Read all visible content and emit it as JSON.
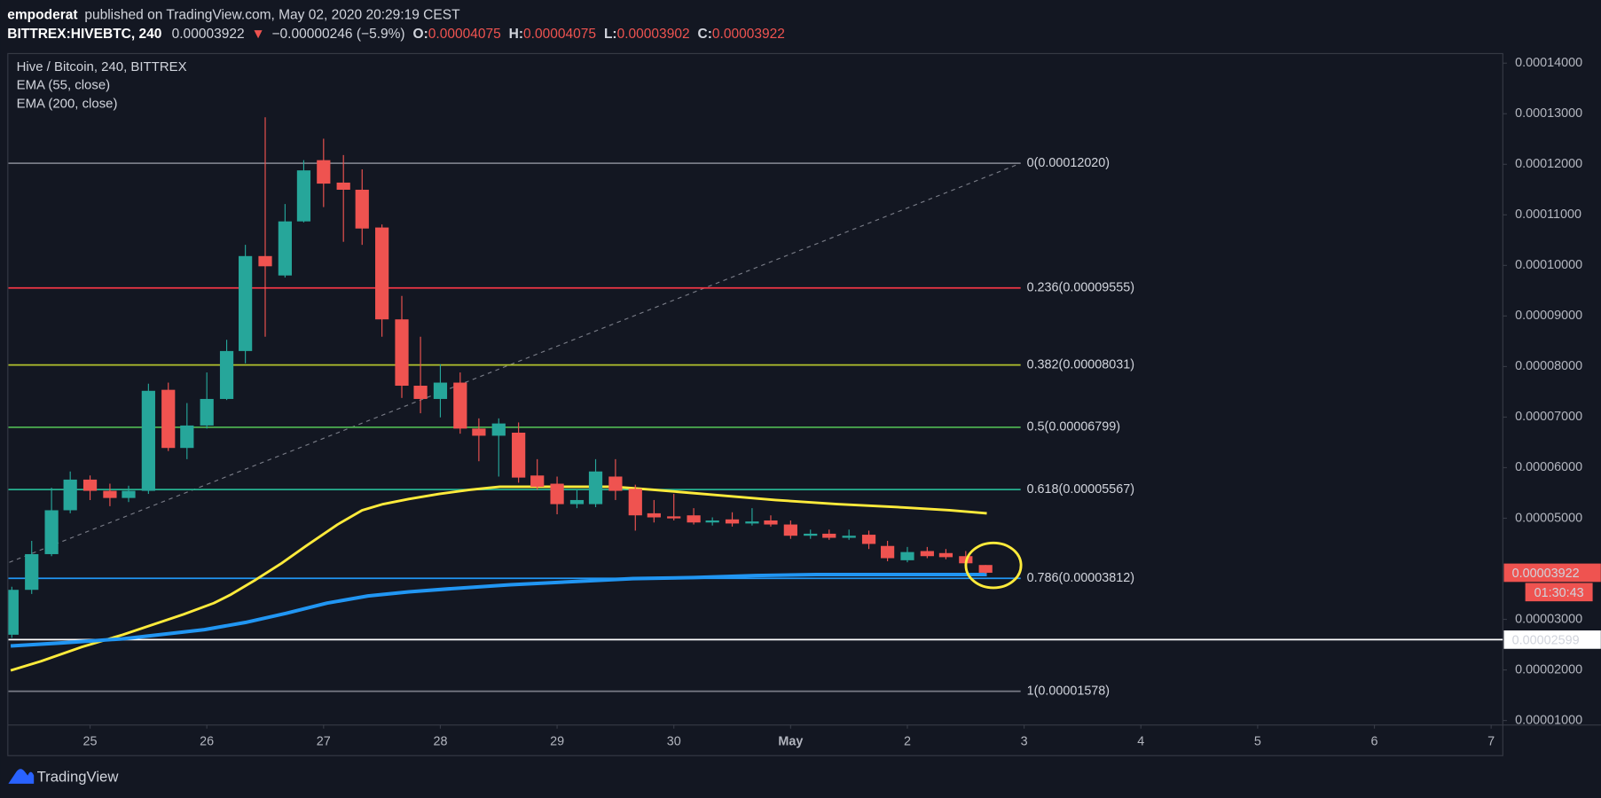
{
  "header": {
    "author": "empoderat",
    "published": "published on TradingView.com, May 02, 2020 20:29:19 CEST",
    "symbol": "BITTREX:HIVEBTC, 240",
    "last": "0.00003922",
    "arrow": "▼",
    "change": "−0.00000246 (−5.9%)",
    "ohlc": [
      {
        "key": "O:",
        "value": "0.00004075"
      },
      {
        "key": "H:",
        "value": "0.00004075"
      },
      {
        "key": "L:",
        "value": "0.00003902"
      },
      {
        "key": "C:",
        "value": "0.00003922"
      }
    ]
  },
  "footer": {
    "brand": "TradingView"
  },
  "chart_data": {
    "type": "candlestick",
    "title": "Hive / Bitcoin, 240, BITTREX",
    "up_color": "#26a69a",
    "down_color": "#ef5350",
    "x": [
      24.33,
      24.5,
      24.67,
      24.83,
      25,
      25.17,
      25.33,
      25.5,
      25.67,
      25.83,
      26,
      26.17,
      26.33,
      26.5,
      26.67,
      26.83,
      27,
      27.17,
      27.33,
      27.5,
      27.67,
      27.83,
      28,
      28.17,
      28.33,
      28.5,
      28.67,
      28.83,
      29,
      29.17,
      29.33,
      29.5,
      29.67,
      29.83,
      30,
      30.17,
      30.33,
      30.5,
      30.67,
      30.83,
      31,
      31.17,
      31.33,
      31.5,
      31.67,
      31.83,
      32,
      32.17,
      32.33,
      32.5,
      32.67
    ],
    "open": [
      2.696e-05,
      3.584e-05,
      4.29e-05,
      5.158e-05,
      5.764e-05,
      5.542e-05,
      5.401e-05,
      5.542e-05,
      7.54e-05,
      6.39e-05,
      6.834e-05,
      7.359e-05,
      8.307e-05,
      0.00010185,
      9.801e-05,
      0.00010871,
      0.00012082,
      0.00011638,
      0.00011497,
      0.0001075,
      8.933e-05,
      7.621e-05,
      7.359e-05,
      7.682e-05,
      6.773e-05,
      6.632e-05,
      6.692e-05,
      5.845e-05,
      5.683e-05,
      5.279e-05,
      5.279e-05,
      5.824e-05,
      5.582e-05,
      5.098e-05,
      5.037e-05,
      5.057e-05,
      4.916e-05,
      4.977e-05,
      4.896e-05,
      4.956e-05,
      4.876e-05,
      4.654e-05,
      4.694e-05,
      4.613e-05,
      4.674e-05,
      4.452e-05,
      4.169e-05,
      4.351e-05,
      4.311e-05,
      4.25e-05,
      4.075e-05
    ],
    "high": [
      3.644e-05,
      4.553e-05,
      5.602e-05,
      5.925e-05,
      5.845e-05,
      5.683e-05,
      5.643e-05,
      7.661e-05,
      7.682e-05,
      7.278e-05,
      7.883e-05,
      8.529e-05,
      0.00010407,
      0.0001293,
      0.00011214,
      0.00012082,
      0.00012506,
      0.00012183,
      0.000119,
      0.0001081,
      9.397e-05,
      8.59e-05,
      8.045e-05,
      7.883e-05,
      6.975e-05,
      6.975e-05,
      6.894e-05,
      6.168e-05,
      5.824e-05,
      5.562e-05,
      6.168e-05,
      6.168e-05,
      5.663e-05,
      5.36e-05,
      5.481e-05,
      5.199e-05,
      5.017e-05,
      5.118e-05,
      5.199e-05,
      5.057e-05,
      4.956e-05,
      4.775e-05,
      4.775e-05,
      4.775e-05,
      4.755e-05,
      4.553e-05,
      4.432e-05,
      4.432e-05,
      4.391e-05,
      4.351e-05,
      4.075e-05
    ],
    "low": [
      2.635e-05,
      3.503e-05,
      4.25e-05,
      5.098e-05,
      5.36e-05,
      5.239e-05,
      5.32e-05,
      5.481e-05,
      6.329e-05,
      6.168e-05,
      6.773e-05,
      7.338e-05,
      8.065e-05,
      8.59e-05,
      9.761e-05,
      0.00010851,
      0.00011154,
      0.00010467,
      0.00010407,
      8.59e-05,
      7.379e-05,
      7.076e-05,
      6.995e-05,
      6.672e-05,
      6.127e-05,
      5.824e-05,
      5.703e-05,
      5.562e-05,
      5.078e-05,
      5.199e-05,
      5.219e-05,
      5.36e-05,
      4.755e-05,
      4.916e-05,
      4.956e-05,
      4.876e-05,
      4.856e-05,
      4.835e-05,
      4.856e-05,
      4.835e-05,
      4.593e-05,
      4.593e-05,
      4.573e-05,
      4.573e-05,
      4.391e-05,
      4.149e-05,
      4.129e-05,
      4.21e-05,
      4.189e-05,
      4.028e-05,
      3.902e-05
    ],
    "close": [
      3.584e-05,
      4.29e-05,
      5.158e-05,
      5.764e-05,
      5.542e-05,
      5.401e-05,
      5.542e-05,
      7.52e-05,
      6.39e-05,
      6.834e-05,
      7.359e-05,
      8.307e-05,
      0.00010185,
      9.983e-05,
      0.00010871,
      0.0001188,
      0.00011618,
      0.00011497,
      0.0001073,
      8.933e-05,
      7.621e-05,
      7.359e-05,
      7.682e-05,
      6.773e-05,
      6.632e-05,
      6.874e-05,
      5.804e-05,
      5.623e-05,
      5.279e-05,
      5.36e-05,
      5.925e-05,
      5.542e-05,
      5.057e-05,
      5.017e-05,
      4.997e-05,
      4.916e-05,
      4.956e-05,
      4.896e-05,
      4.936e-05,
      4.876e-05,
      4.654e-05,
      4.694e-05,
      4.613e-05,
      4.654e-05,
      4.492e-05,
      4.21e-05,
      4.331e-05,
      4.25e-05,
      4.23e-05,
      4.109e-05,
      3.922e-05
    ],
    "lines": [
      {
        "name": "EMA (55, close)",
        "color": "#ffeb3b",
        "x": [
          24.32,
          24.58,
          24.93,
          25.28,
          25.54,
          25.8,
          26.06,
          26.2,
          26.42,
          26.64,
          26.85,
          27.12,
          27.33,
          27.51,
          27.73,
          27.99,
          28.25,
          28.51,
          29.13,
          29.48,
          29.83,
          30.35,
          30.87,
          31.4,
          31.92,
          32.36,
          32.68
        ],
        "values": [
          1.989e-05,
          2.171e-05,
          2.453e-05,
          2.696e-05,
          2.897e-05,
          3.099e-05,
          3.321e-05,
          3.483e-05,
          3.786e-05,
          4.109e-05,
          4.452e-05,
          4.876e-05,
          5.158e-05,
          5.279e-05,
          5.38e-05,
          5.481e-05,
          5.562e-05,
          5.623e-05,
          5.623e-05,
          5.623e-05,
          5.562e-05,
          5.461e-05,
          5.36e-05,
          5.279e-05,
          5.219e-05,
          5.158e-05,
          5.098e-05
        ]
      },
      {
        "name": "EMA (200, close)",
        "color": "#2196f3",
        "x": [
          24.32,
          24.76,
          25.28,
          25.98,
          26.33,
          26.68,
          27.03,
          27.38,
          27.73,
          28.08,
          28.6,
          29.13,
          29.65,
          30.17,
          30.7,
          31.22,
          32.68
        ],
        "values": [
          2.474e-05,
          2.534e-05,
          2.615e-05,
          2.797e-05,
          2.938e-05,
          3.12e-05,
          3.321e-05,
          3.463e-05,
          3.543e-05,
          3.604e-05,
          3.685e-05,
          3.745e-05,
          3.806e-05,
          3.826e-05,
          3.866e-05,
          3.887e-05,
          3.887e-05
        ]
      }
    ],
    "fib": {
      "start": [
        21.51,
        1.578e-05
      ],
      "end": [
        32.97,
        0.0001202
      ],
      "levels": [
        {
          "value": 0.0001202,
          "label": "0(0.00012020)",
          "color": "#787b86"
        },
        {
          "value": 9.555e-05,
          "label": "0.236(0.00009555)",
          "color": "#f23645"
        },
        {
          "value": 8.031e-05,
          "label": "0.382(0.00008031)",
          "color": "#b2c22d"
        },
        {
          "value": 6.799e-05,
          "label": "0.5(0.00006799)",
          "color": "#4caf50"
        },
        {
          "value": 5.567e-05,
          "label": "0.618(0.00005567)",
          "color": "#26b08f"
        },
        {
          "value": 3.812e-05,
          "label": "0.786(0.00003812)",
          "color": "#2196f3"
        },
        {
          "value": 1.578e-05,
          "label": "1(0.00001578)",
          "color": "#787b86"
        }
      ]
    },
    "hline": {
      "value": 2.599e-05,
      "color": "#ffffff"
    },
    "countdown": "01:30:43",
    "xlim": [
      24.3,
      37.1
    ],
    "xticks": [
      25,
      26,
      27,
      28,
      29,
      30,
      {
        "value": 31,
        "label": "May"
      },
      {
        "value": 32,
        "label": "2"
      },
      {
        "value": 33,
        "label": "3"
      },
      {
        "value": 34,
        "label": "4"
      },
      {
        "value": 35,
        "label": "5"
      },
      {
        "value": 36,
        "label": "6"
      },
      {
        "value": 37,
        "label": "7"
      }
    ],
    "ylim": [
      9.2e-06,
      0.000142
    ],
    "yticks": [
      {
        "value": 0.00014,
        "label": "0.00014000"
      },
      {
        "value": 0.00013,
        "label": "0.00013000"
      },
      {
        "value": 0.00012,
        "label": "0.00012000"
      },
      {
        "value": 0.00011,
        "label": "0.00011000"
      },
      {
        "value": 0.0001,
        "label": "0.00010000"
      },
      {
        "value": 9e-05,
        "label": "0.00009000"
      },
      {
        "value": 8e-05,
        "label": "0.00008000"
      },
      {
        "value": 7e-05,
        "label": "0.00007000"
      },
      {
        "value": 6e-05,
        "label": "0.00006000"
      },
      {
        "value": 5e-05,
        "label": "0.00005000"
      },
      {
        "value": 3e-05,
        "label": "0.00003000"
      },
      {
        "value": 2e-05,
        "label": "0.00002000"
      },
      {
        "value": 1e-05,
        "label": "0.00001000"
      }
    ],
    "grid": false
  }
}
